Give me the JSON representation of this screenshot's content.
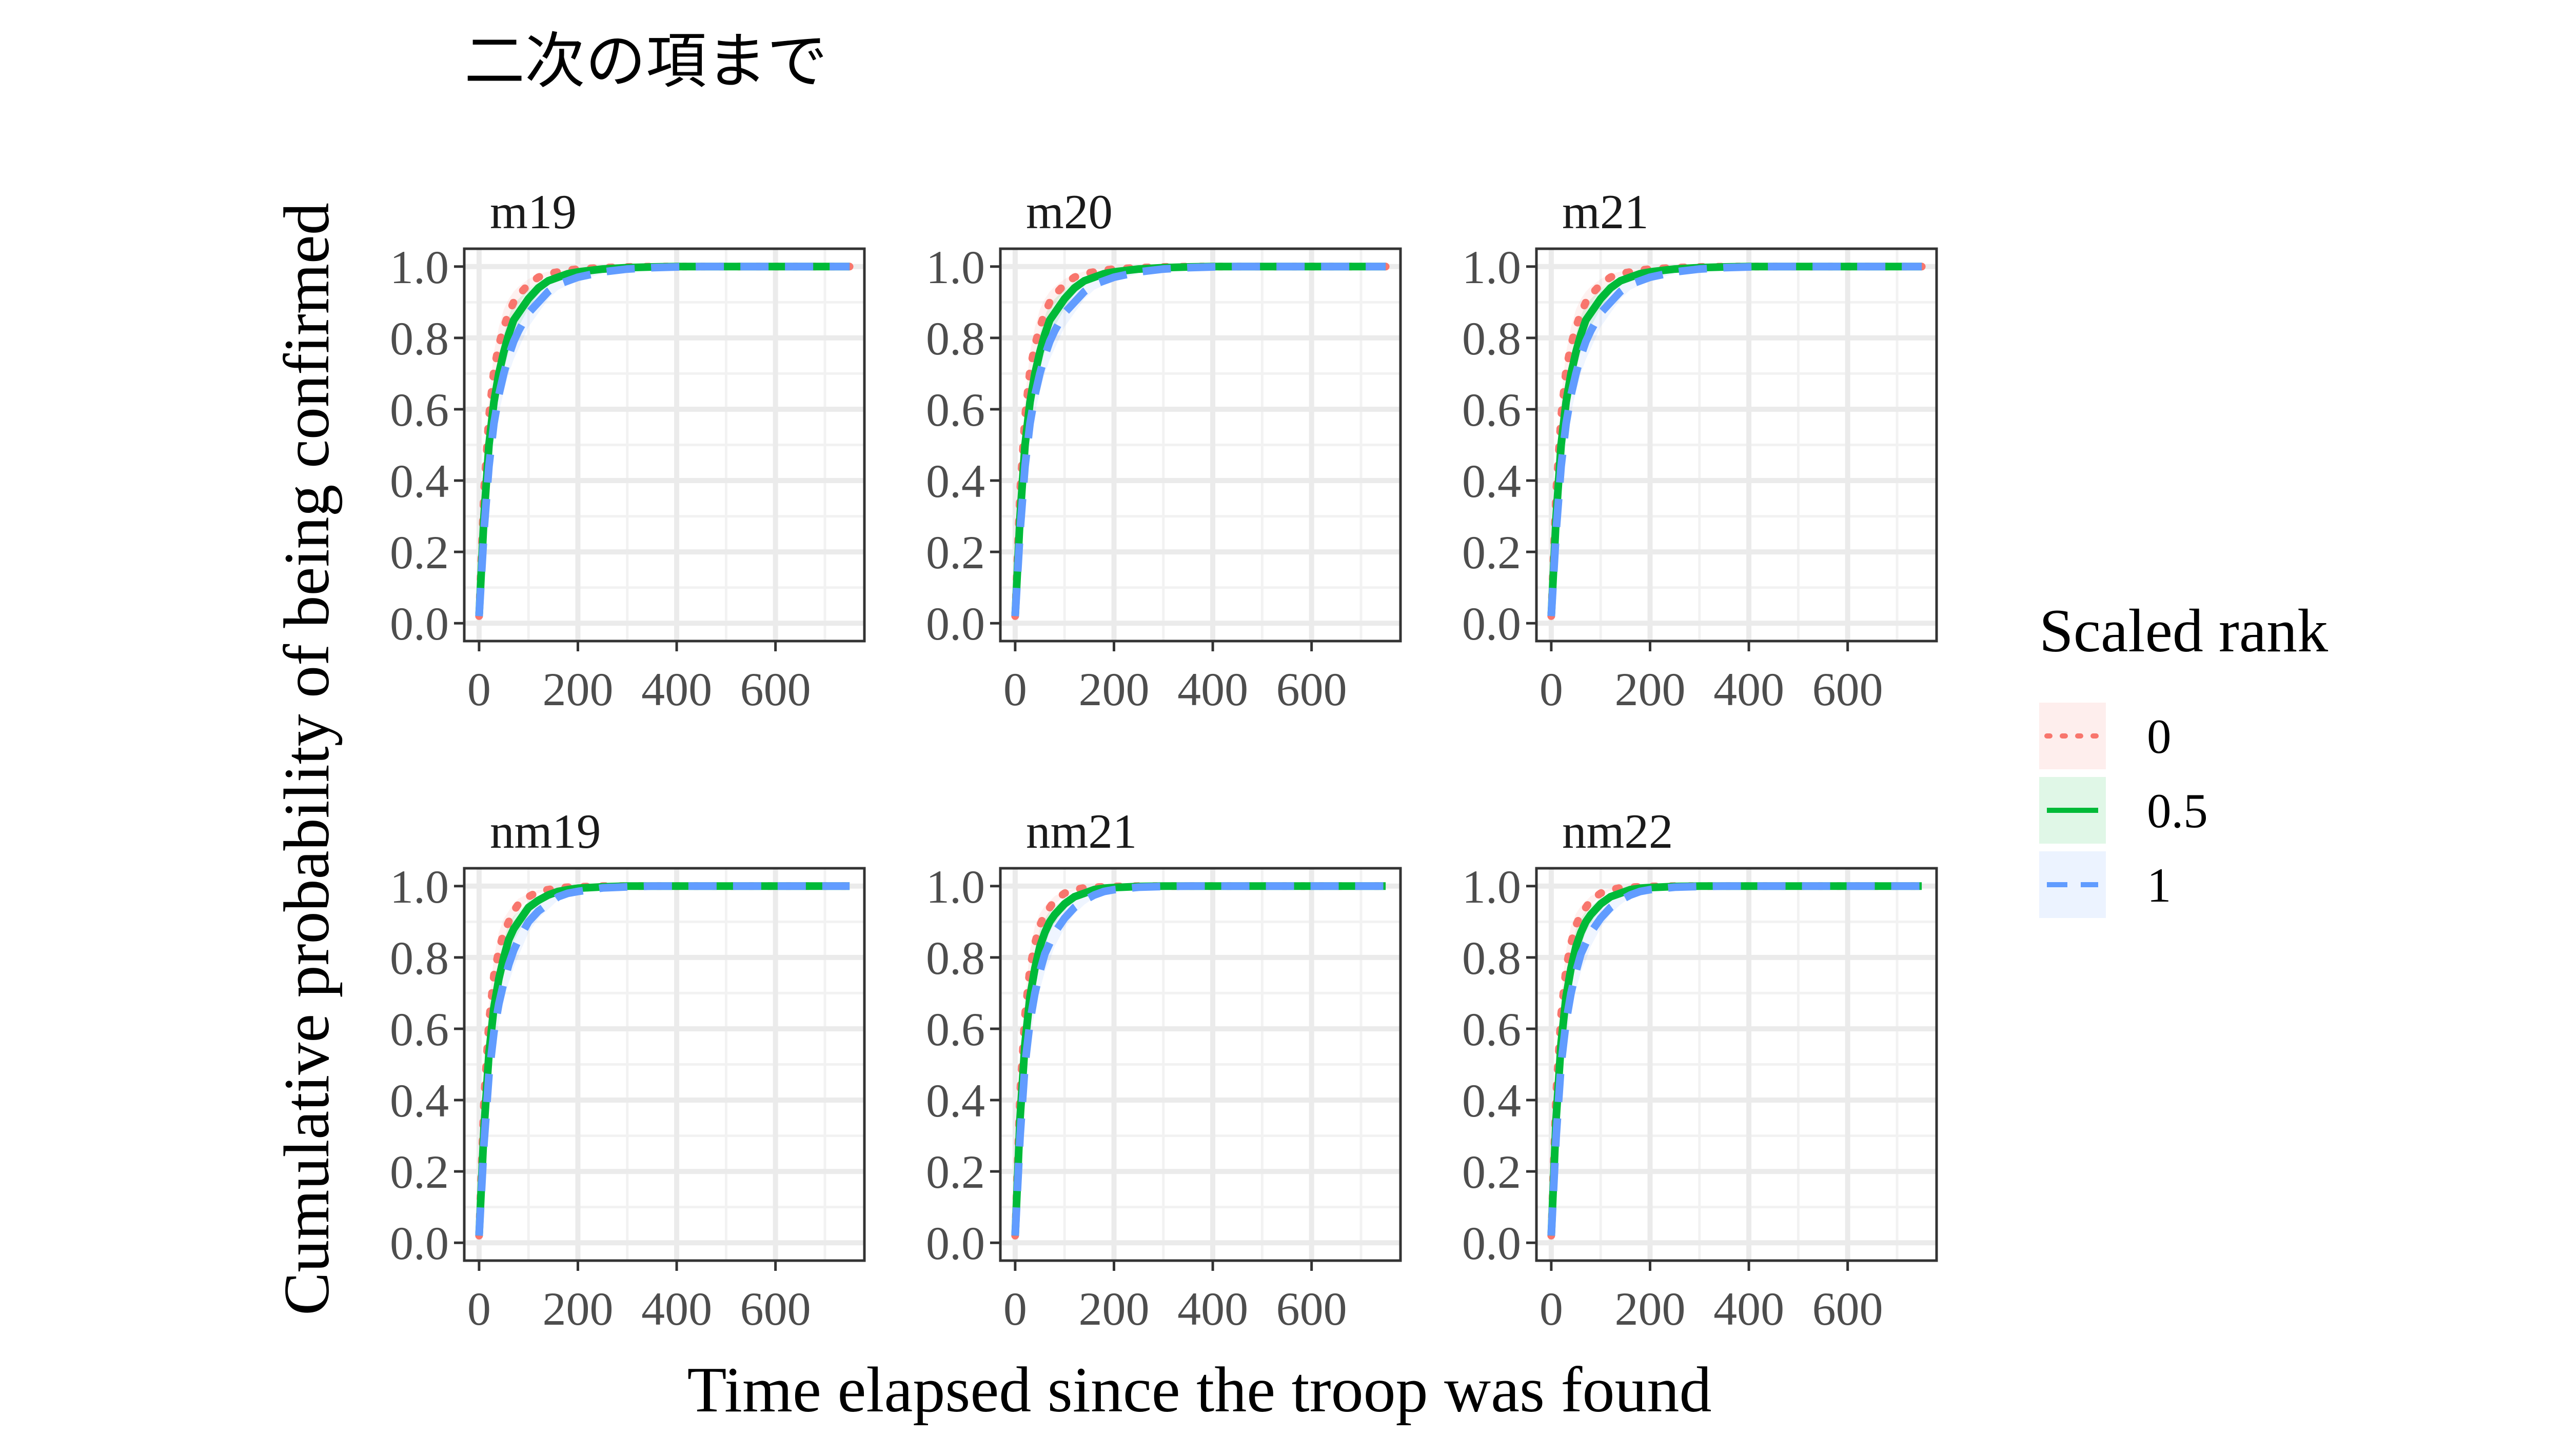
{
  "chart_data": {
    "type": "line",
    "title": "二次の項まで",
    "xlabel": "Time elapsed since the troop was found",
    "ylabel": "Cumulative probability of being confirmed",
    "xlim": [
      -30,
      780
    ],
    "ylim": [
      -0.05,
      1.05
    ],
    "x_ticks": [
      0,
      200,
      400,
      600
    ],
    "x_tick_labels": [
      "0",
      "200",
      "400",
      "600"
    ],
    "y_ticks": [
      0,
      0.2,
      0.4,
      0.6,
      0.8,
      1.0
    ],
    "y_tick_labels": [
      "0.0",
      "0.2",
      "0.4",
      "0.6",
      "0.8",
      "1.0"
    ],
    "grid": true,
    "legend": {
      "title": "Scaled rank",
      "placement": "right",
      "entries": [
        {
          "label": "0",
          "color": "#F8766D",
          "dash": "dotted"
        },
        {
          "label": "0.5",
          "color": "#00BA38",
          "dash": "solid"
        },
        {
          "label": "1",
          "color": "#619CFF",
          "dash": "dashed"
        }
      ]
    },
    "x": [
      0,
      10,
      20,
      30,
      40,
      50,
      60,
      70,
      80,
      100,
      120,
      140,
      160,
      180,
      200,
      250,
      300,
      350,
      400,
      450,
      500,
      550,
      600,
      650,
      700,
      750
    ],
    "panels": [
      {
        "name": "m19",
        "series": [
          {
            "name": "0",
            "values": [
              0.02,
              0.37,
              0.58,
              0.71,
              0.78,
              0.83,
              0.87,
              0.9,
              0.92,
              0.95,
              0.97,
              0.98,
              0.985,
              0.99,
              0.993,
              0.997,
              0.999,
              1.0,
              1.0,
              1.0,
              1.0,
              1.0,
              1.0,
              1.0,
              1.0,
              1.0
            ]
          },
          {
            "name": "0.5",
            "values": [
              0.02,
              0.3,
              0.5,
              0.62,
              0.7,
              0.76,
              0.81,
              0.85,
              0.87,
              0.91,
              0.94,
              0.96,
              0.97,
              0.98,
              0.985,
              0.993,
              0.997,
              0.999,
              1.0,
              1.0,
              1.0,
              1.0,
              1.0,
              1.0,
              1.0,
              1.0
            ]
          },
          {
            "name": "1",
            "values": [
              0.02,
              0.26,
              0.44,
              0.56,
              0.64,
              0.7,
              0.75,
              0.79,
              0.82,
              0.87,
              0.9,
              0.93,
              0.95,
              0.96,
              0.97,
              0.985,
              0.993,
              0.997,
              0.999,
              1.0,
              1.0,
              1.0,
              1.0,
              1.0,
              1.0,
              1.0
            ]
          }
        ]
      },
      {
        "name": "m20",
        "series": [
          {
            "name": "0",
            "values": [
              0.02,
              0.37,
              0.58,
              0.71,
              0.78,
              0.83,
              0.87,
              0.9,
              0.92,
              0.95,
              0.97,
              0.98,
              0.985,
              0.99,
              0.993,
              0.997,
              0.999,
              1.0,
              1.0,
              1.0,
              1.0,
              1.0,
              1.0,
              1.0,
              1.0,
              1.0
            ]
          },
          {
            "name": "0.5",
            "values": [
              0.02,
              0.3,
              0.5,
              0.62,
              0.7,
              0.76,
              0.81,
              0.85,
              0.87,
              0.91,
              0.94,
              0.96,
              0.97,
              0.98,
              0.985,
              0.993,
              0.997,
              0.999,
              1.0,
              1.0,
              1.0,
              1.0,
              1.0,
              1.0,
              1.0,
              1.0
            ]
          },
          {
            "name": "1",
            "values": [
              0.02,
              0.26,
              0.44,
              0.56,
              0.64,
              0.7,
              0.75,
              0.79,
              0.82,
              0.87,
              0.9,
              0.93,
              0.95,
              0.96,
              0.97,
              0.985,
              0.993,
              0.997,
              0.999,
              1.0,
              1.0,
              1.0,
              1.0,
              1.0,
              1.0,
              1.0
            ]
          }
        ]
      },
      {
        "name": "m21",
        "series": [
          {
            "name": "0",
            "values": [
              0.02,
              0.37,
              0.58,
              0.71,
              0.78,
              0.83,
              0.87,
              0.9,
              0.92,
              0.95,
              0.97,
              0.98,
              0.985,
              0.99,
              0.993,
              0.997,
              0.999,
              1.0,
              1.0,
              1.0,
              1.0,
              1.0,
              1.0,
              1.0,
              1.0,
              1.0
            ]
          },
          {
            "name": "0.5",
            "values": [
              0.02,
              0.3,
              0.5,
              0.62,
              0.7,
              0.76,
              0.81,
              0.85,
              0.87,
              0.91,
              0.94,
              0.96,
              0.97,
              0.98,
              0.985,
              0.993,
              0.997,
              0.999,
              1.0,
              1.0,
              1.0,
              1.0,
              1.0,
              1.0,
              1.0,
              1.0
            ]
          },
          {
            "name": "1",
            "values": [
              0.02,
              0.26,
              0.44,
              0.56,
              0.64,
              0.7,
              0.75,
              0.79,
              0.82,
              0.87,
              0.9,
              0.93,
              0.95,
              0.96,
              0.97,
              0.985,
              0.993,
              0.997,
              0.999,
              1.0,
              1.0,
              1.0,
              1.0,
              1.0,
              1.0,
              1.0
            ]
          }
        ]
      },
      {
        "name": "nm19",
        "series": [
          {
            "name": "0",
            "values": [
              0.02,
              0.4,
              0.62,
              0.75,
              0.82,
              0.87,
              0.9,
              0.93,
              0.95,
              0.97,
              0.985,
              0.99,
              0.995,
              0.997,
              0.998,
              1.0,
              1.0,
              1.0,
              1.0,
              1.0,
              1.0,
              1.0,
              1.0,
              1.0,
              1.0,
              1.0
            ]
          },
          {
            "name": "0.5",
            "values": [
              0.02,
              0.32,
              0.53,
              0.66,
              0.74,
              0.8,
              0.85,
              0.88,
              0.9,
              0.94,
              0.96,
              0.975,
              0.985,
              0.99,
              0.994,
              0.998,
              1.0,
              1.0,
              1.0,
              1.0,
              1.0,
              1.0,
              1.0,
              1.0,
              1.0,
              1.0
            ]
          },
          {
            "name": "1",
            "values": [
              0.02,
              0.28,
              0.47,
              0.59,
              0.67,
              0.73,
              0.78,
              0.82,
              0.85,
              0.9,
              0.93,
              0.95,
              0.97,
              0.98,
              0.985,
              0.995,
              0.998,
              1.0,
              1.0,
              1.0,
              1.0,
              1.0,
              1.0,
              1.0,
              1.0,
              1.0
            ]
          }
        ]
      },
      {
        "name": "nm21",
        "series": [
          {
            "name": "0",
            "values": [
              0.02,
              0.42,
              0.64,
              0.77,
              0.84,
              0.89,
              0.92,
              0.94,
              0.96,
              0.98,
              0.99,
              0.995,
              0.997,
              0.998,
              0.999,
              1.0,
              1.0,
              1.0,
              1.0,
              1.0,
              1.0,
              1.0,
              1.0,
              1.0,
              1.0,
              1.0
            ]
          },
          {
            "name": "0.5",
            "values": [
              0.02,
              0.35,
              0.56,
              0.69,
              0.77,
              0.83,
              0.87,
              0.9,
              0.92,
              0.95,
              0.97,
              0.98,
              0.99,
              0.994,
              0.996,
              0.999,
              1.0,
              1.0,
              1.0,
              1.0,
              1.0,
              1.0,
              1.0,
              1.0,
              1.0,
              1.0
            ]
          },
          {
            "name": "1",
            "values": [
              0.02,
              0.3,
              0.5,
              0.62,
              0.7,
              0.76,
              0.81,
              0.84,
              0.87,
              0.91,
              0.94,
              0.96,
              0.975,
              0.985,
              0.99,
              0.997,
              0.999,
              1.0,
              1.0,
              1.0,
              1.0,
              1.0,
              1.0,
              1.0,
              1.0,
              1.0
            ]
          }
        ]
      },
      {
        "name": "nm22",
        "series": [
          {
            "name": "0",
            "values": [
              0.02,
              0.42,
              0.64,
              0.77,
              0.84,
              0.89,
              0.92,
              0.94,
              0.96,
              0.98,
              0.99,
              0.995,
              0.997,
              0.998,
              0.999,
              1.0,
              1.0,
              1.0,
              1.0,
              1.0,
              1.0,
              1.0,
              1.0,
              1.0,
              1.0,
              1.0
            ]
          },
          {
            "name": "0.5",
            "values": [
              0.02,
              0.35,
              0.56,
              0.69,
              0.77,
              0.83,
              0.87,
              0.9,
              0.92,
              0.95,
              0.97,
              0.98,
              0.99,
              0.994,
              0.996,
              0.999,
              1.0,
              1.0,
              1.0,
              1.0,
              1.0,
              1.0,
              1.0,
              1.0,
              1.0,
              1.0
            ]
          },
          {
            "name": "1",
            "values": [
              0.02,
              0.3,
              0.5,
              0.62,
              0.7,
              0.76,
              0.81,
              0.84,
              0.87,
              0.91,
              0.94,
              0.96,
              0.975,
              0.985,
              0.99,
              0.997,
              0.999,
              1.0,
              1.0,
              1.0,
              1.0,
              1.0,
              1.0,
              1.0,
              1.0,
              1.0
            ]
          }
        ]
      }
    ]
  }
}
